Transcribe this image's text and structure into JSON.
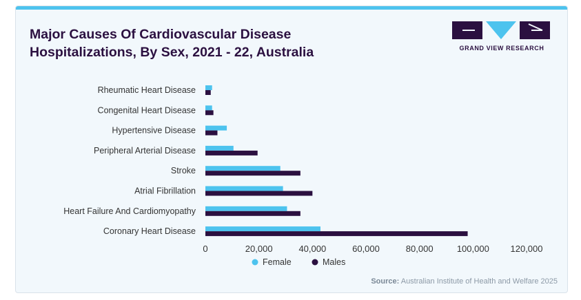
{
  "header": {
    "title_line1": "Major Causes Of Cardiovascular Disease",
    "title_line2": "Hospitalizations, By Sex, 2021 - 22, Australia",
    "logo_text": "GRAND VIEW RESEARCH"
  },
  "colors": {
    "female": "#4dc3ee",
    "males": "#2b1040",
    "accent": "#4dc3ee",
    "title": "#2b1040"
  },
  "chart_data": {
    "type": "bar",
    "orientation": "horizontal",
    "categories": [
      "Rheumatic Heart Disease",
      "Congenital Heart Disease",
      "Hypertensive Disease",
      "Peripheral Arterial Disease",
      "Stroke",
      "Atrial Fibrillation",
      "Heart Failure And Cardiomyopathy",
      "Coronary Heart Disease"
    ],
    "series": [
      {
        "name": "Female",
        "values": [
          2500,
          2500,
          8000,
          10500,
          28000,
          29000,
          30500,
          43000
        ]
      },
      {
        "name": "Males",
        "values": [
          2000,
          3000,
          4500,
          19500,
          35500,
          40000,
          35500,
          98000
        ]
      }
    ],
    "x_ticks": [
      "0",
      "20,000",
      "40,000",
      "60,000",
      "80,000",
      "100,000",
      "120,000"
    ],
    "xlim": [
      0,
      120000
    ],
    "legend_position": "bottom",
    "grid": false
  },
  "legend": {
    "female": "Female",
    "males": "Males"
  },
  "source": {
    "label": "Source:",
    "text": " Australian Institute of Health and Welfare 2025"
  }
}
